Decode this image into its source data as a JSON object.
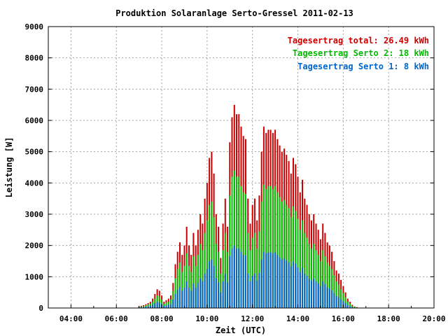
{
  "chart_data": {
    "type": "bar",
    "title": "Produktion Solaranlage Serto-Gressel 2011-02-13",
    "xlabel": "Zeit (UTC)",
    "ylabel": "Leistung [W]",
    "xlim": [
      3.0,
      20.0
    ],
    "ylim": [
      0,
      9000
    ],
    "x_ticks": [
      {
        "value": 4,
        "label": "04:00"
      },
      {
        "value": 6,
        "label": "06:00"
      },
      {
        "value": 8,
        "label": "08:00"
      },
      {
        "value": 10,
        "label": "10:00"
      },
      {
        "value": 12,
        "label": "12:00"
      },
      {
        "value": 14,
        "label": "14:00"
      },
      {
        "value": 16,
        "label": "16:00"
      },
      {
        "value": 18,
        "label": "18:00"
      },
      {
        "value": 20,
        "label": "20:00"
      }
    ],
    "y_ticks": [
      0,
      1000,
      2000,
      3000,
      4000,
      5000,
      6000,
      7000,
      8000,
      9000
    ],
    "grid": true,
    "legend_position": "top-right",
    "legend": [
      {
        "label": "Tagesertrag total: 26.49 kWh",
        "color": "#cc0000"
      },
      {
        "label": "Tagesertrag Serto 2: 18 kWh",
        "color": "#00bb00"
      },
      {
        "label": "Tagesertrag Serto 1: 8 kWh",
        "color": "#0066cc"
      }
    ],
    "series": [
      {
        "name": "total",
        "color": "#cc0000",
        "points": [
          [
            7.0,
            50
          ],
          [
            7.1,
            70
          ],
          [
            7.2,
            90
          ],
          [
            7.3,
            120
          ],
          [
            7.4,
            160
          ],
          [
            7.5,
            200
          ],
          [
            7.6,
            300
          ],
          [
            7.7,
            450
          ],
          [
            7.8,
            600
          ],
          [
            7.9,
            550
          ],
          [
            8.0,
            400
          ],
          [
            8.1,
            200
          ],
          [
            8.2,
            250
          ],
          [
            8.3,
            300
          ],
          [
            8.4,
            400
          ],
          [
            8.5,
            800
          ],
          [
            8.6,
            1400
          ],
          [
            8.7,
            1800
          ],
          [
            8.8,
            2100
          ],
          [
            8.9,
            1700
          ],
          [
            9.0,
            2000
          ],
          [
            9.1,
            2600
          ],
          [
            9.2,
            2000
          ],
          [
            9.3,
            1700
          ],
          [
            9.4,
            2400
          ],
          [
            9.5,
            2000
          ],
          [
            9.6,
            2500
          ],
          [
            9.7,
            3000
          ],
          [
            9.8,
            2700
          ],
          [
            9.9,
            3500
          ],
          [
            10.0,
            4000
          ],
          [
            10.1,
            4800
          ],
          [
            10.2,
            5000
          ],
          [
            10.3,
            4300
          ],
          [
            10.4,
            3000
          ],
          [
            10.5,
            2600
          ],
          [
            10.6,
            1600
          ],
          [
            10.7,
            2700
          ],
          [
            10.8,
            3500
          ],
          [
            10.9,
            2600
          ],
          [
            11.0,
            5300
          ],
          [
            11.1,
            6100
          ],
          [
            11.2,
            6500
          ],
          [
            11.3,
            6200
          ],
          [
            11.4,
            6200
          ],
          [
            11.5,
            5800
          ],
          [
            11.6,
            5500
          ],
          [
            11.7,
            5400
          ],
          [
            11.8,
            3500
          ],
          [
            11.9,
            2700
          ],
          [
            12.0,
            3300
          ],
          [
            12.1,
            3500
          ],
          [
            12.2,
            2800
          ],
          [
            12.3,
            3600
          ],
          [
            12.4,
            5000
          ],
          [
            12.5,
            5800
          ],
          [
            12.6,
            5600
          ],
          [
            12.7,
            5700
          ],
          [
            12.8,
            5700
          ],
          [
            12.9,
            5600
          ],
          [
            13.0,
            5700
          ],
          [
            13.1,
            5400
          ],
          [
            13.2,
            5200
          ],
          [
            13.3,
            5000
          ],
          [
            13.4,
            5100
          ],
          [
            13.5,
            4900
          ],
          [
            13.6,
            4700
          ],
          [
            13.7,
            4300
          ],
          [
            13.8,
            4800
          ],
          [
            13.9,
            4600
          ],
          [
            14.0,
            4200
          ],
          [
            14.1,
            3700
          ],
          [
            14.2,
            4100
          ],
          [
            14.3,
            3500
          ],
          [
            14.4,
            3300
          ],
          [
            14.5,
            3000
          ],
          [
            14.6,
            2800
          ],
          [
            14.7,
            3000
          ],
          [
            14.8,
            2700
          ],
          [
            14.9,
            2500
          ],
          [
            15.0,
            2200
          ],
          [
            15.1,
            2700
          ],
          [
            15.2,
            2400
          ],
          [
            15.3,
            2100
          ],
          [
            15.4,
            2000
          ],
          [
            15.5,
            1800
          ],
          [
            15.6,
            1500
          ],
          [
            15.7,
            1200
          ],
          [
            15.8,
            1100
          ],
          [
            15.9,
            900
          ],
          [
            16.0,
            700
          ],
          [
            16.1,
            500
          ],
          [
            16.2,
            300
          ],
          [
            16.3,
            200
          ],
          [
            16.4,
            100
          ],
          [
            16.5,
            50
          ],
          [
            16.6,
            30
          ]
        ]
      },
      {
        "name": "Serto 2",
        "color": "#00bb00",
        "points": [
          [
            7.0,
            30
          ],
          [
            7.1,
            40
          ],
          [
            7.2,
            60
          ],
          [
            7.3,
            80
          ],
          [
            7.4,
            110
          ],
          [
            7.5,
            140
          ],
          [
            7.6,
            200
          ],
          [
            7.7,
            300
          ],
          [
            7.8,
            400
          ],
          [
            7.9,
            370
          ],
          [
            8.0,
            270
          ],
          [
            8.1,
            130
          ],
          [
            8.2,
            170
          ],
          [
            8.3,
            200
          ],
          [
            8.4,
            270
          ],
          [
            8.5,
            550
          ],
          [
            8.6,
            950
          ],
          [
            8.7,
            1250
          ],
          [
            8.8,
            1450
          ],
          [
            8.9,
            1150
          ],
          [
            9.0,
            1350
          ],
          [
            9.1,
            1750
          ],
          [
            9.2,
            1350
          ],
          [
            9.3,
            1150
          ],
          [
            9.4,
            1650
          ],
          [
            9.5,
            1350
          ],
          [
            9.6,
            1700
          ],
          [
            9.7,
            2050
          ],
          [
            9.8,
            1850
          ],
          [
            9.9,
            2400
          ],
          [
            10.0,
            2800
          ],
          [
            10.1,
            3300
          ],
          [
            10.2,
            3400
          ],
          [
            10.3,
            2900
          ],
          [
            10.4,
            2050
          ],
          [
            10.5,
            1800
          ],
          [
            10.6,
            1100
          ],
          [
            10.7,
            1850
          ],
          [
            10.8,
            2400
          ],
          [
            10.9,
            1800
          ],
          [
            11.0,
            3600
          ],
          [
            11.1,
            4200
          ],
          [
            11.2,
            4400
          ],
          [
            11.3,
            4200
          ],
          [
            11.4,
            4200
          ],
          [
            11.5,
            3900
          ],
          [
            11.6,
            3700
          ],
          [
            11.7,
            3650
          ],
          [
            11.8,
            2400
          ],
          [
            11.9,
            1850
          ],
          [
            12.0,
            2250
          ],
          [
            12.1,
            2400
          ],
          [
            12.2,
            1900
          ],
          [
            12.3,
            2450
          ],
          [
            12.4,
            3400
          ],
          [
            12.5,
            3950
          ],
          [
            12.6,
            3800
          ],
          [
            12.7,
            3900
          ],
          [
            12.8,
            3900
          ],
          [
            12.9,
            3800
          ],
          [
            13.0,
            3900
          ],
          [
            13.1,
            3700
          ],
          [
            13.2,
            3550
          ],
          [
            13.3,
            3400
          ],
          [
            13.4,
            3450
          ],
          [
            13.5,
            3300
          ],
          [
            13.6,
            3200
          ],
          [
            13.7,
            2900
          ],
          [
            13.8,
            3250
          ],
          [
            13.9,
            3100
          ],
          [
            14.0,
            2850
          ],
          [
            14.1,
            2500
          ],
          [
            14.2,
            2800
          ],
          [
            14.3,
            2400
          ],
          [
            14.4,
            2250
          ],
          [
            14.5,
            2050
          ],
          [
            14.6,
            1900
          ],
          [
            14.7,
            2050
          ],
          [
            14.8,
            1850
          ],
          [
            14.9,
            1700
          ],
          [
            15.0,
            1500
          ],
          [
            15.1,
            1850
          ],
          [
            15.2,
            1650
          ],
          [
            15.3,
            1450
          ],
          [
            15.4,
            1350
          ],
          [
            15.5,
            1250
          ],
          [
            15.6,
            1050
          ],
          [
            15.7,
            850
          ],
          [
            15.8,
            750
          ],
          [
            15.9,
            600
          ],
          [
            16.0,
            480
          ],
          [
            16.1,
            350
          ],
          [
            16.2,
            200
          ],
          [
            16.3,
            140
          ],
          [
            16.4,
            70
          ],
          [
            16.5,
            35
          ],
          [
            16.6,
            20
          ]
        ]
      },
      {
        "name": "Serto 1",
        "color": "#0066cc",
        "points": [
          [
            7.0,
            15
          ],
          [
            7.1,
            20
          ],
          [
            7.2,
            30
          ],
          [
            7.3,
            40
          ],
          [
            7.4,
            55
          ],
          [
            7.5,
            70
          ],
          [
            7.6,
            100
          ],
          [
            7.7,
            150
          ],
          [
            7.8,
            200
          ],
          [
            7.9,
            180
          ],
          [
            8.0,
            130
          ],
          [
            8.1,
            70
          ],
          [
            8.2,
            80
          ],
          [
            8.3,
            100
          ],
          [
            8.4,
            130
          ],
          [
            8.5,
            270
          ],
          [
            8.6,
            450
          ],
          [
            8.7,
            580
          ],
          [
            8.8,
            680
          ],
          [
            8.9,
            550
          ],
          [
            9.0,
            650
          ],
          [
            9.1,
            850
          ],
          [
            9.2,
            650
          ],
          [
            9.3,
            550
          ],
          [
            9.4,
            780
          ],
          [
            9.5,
            650
          ],
          [
            9.6,
            800
          ],
          [
            9.7,
            950
          ],
          [
            9.8,
            850
          ],
          [
            9.9,
            1100
          ],
          [
            10.0,
            1250
          ],
          [
            10.1,
            1500
          ],
          [
            10.2,
            1550
          ],
          [
            10.3,
            1350
          ],
          [
            10.4,
            950
          ],
          [
            10.5,
            820
          ],
          [
            10.6,
            500
          ],
          [
            10.7,
            850
          ],
          [
            10.8,
            1100
          ],
          [
            10.9,
            820
          ],
          [
            11.0,
            1650
          ],
          [
            11.1,
            1900
          ],
          [
            11.2,
            2000
          ],
          [
            11.3,
            1900
          ],
          [
            11.4,
            1900
          ],
          [
            11.5,
            1800
          ],
          [
            11.6,
            1700
          ],
          [
            11.7,
            1680
          ],
          [
            11.8,
            1100
          ],
          [
            11.9,
            850
          ],
          [
            12.0,
            1030
          ],
          [
            12.1,
            1100
          ],
          [
            12.2,
            870
          ],
          [
            12.3,
            1120
          ],
          [
            12.4,
            1550
          ],
          [
            12.5,
            1800
          ],
          [
            12.6,
            1750
          ],
          [
            12.7,
            1780
          ],
          [
            12.8,
            1780
          ],
          [
            12.9,
            1750
          ],
          [
            13.0,
            1780
          ],
          [
            13.1,
            1700
          ],
          [
            13.2,
            1620
          ],
          [
            13.3,
            1550
          ],
          [
            13.4,
            1580
          ],
          [
            13.5,
            1520
          ],
          [
            13.6,
            1460
          ],
          [
            13.7,
            1330
          ],
          [
            13.8,
            1490
          ],
          [
            13.9,
            1420
          ],
          [
            14.0,
            1300
          ],
          [
            14.1,
            1150
          ],
          [
            14.2,
            1280
          ],
          [
            14.3,
            1100
          ],
          [
            14.4,
            1030
          ],
          [
            14.5,
            940
          ],
          [
            14.6,
            870
          ],
          [
            14.7,
            940
          ],
          [
            14.8,
            850
          ],
          [
            14.9,
            780
          ],
          [
            15.0,
            690
          ],
          [
            15.1,
            850
          ],
          [
            15.2,
            760
          ],
          [
            15.3,
            660
          ],
          [
            15.4,
            620
          ],
          [
            15.5,
            560
          ],
          [
            15.6,
            470
          ],
          [
            15.7,
            380
          ],
          [
            15.8,
            340
          ],
          [
            15.9,
            280
          ],
          [
            16.0,
            220
          ],
          [
            16.1,
            160
          ],
          [
            16.2,
            90
          ],
          [
            16.3,
            60
          ],
          [
            16.4,
            30
          ],
          [
            16.5,
            15
          ],
          [
            16.6,
            10
          ]
        ]
      }
    ]
  }
}
